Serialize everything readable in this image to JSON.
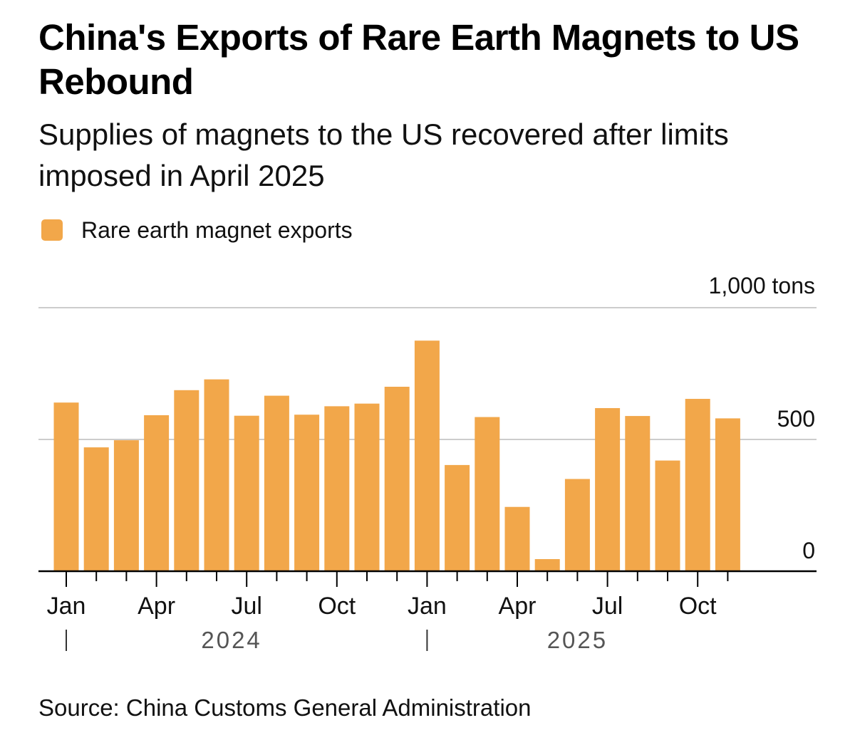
{
  "title": "China's Exports of Rare Earth Magnets to US Rebound",
  "subtitle": "Supplies of magnets to the US recovered after limits imposed in April 2025",
  "source": "Source: China Customs General Administration",
  "colors": {
    "bar": "#F2A74A",
    "grid": "#cccccc",
    "axis": "#000000",
    "year_text": "#555555"
  },
  "chart_data": {
    "type": "bar",
    "title": "China's Exports of Rare Earth Magnets to US Rebound",
    "series": [
      {
        "name": "Rare earth magnet exports",
        "values": [
          640,
          470,
          497,
          592,
          687,
          728,
          590,
          666,
          594,
          626,
          636,
          700,
          875,
          403,
          585,
          244,
          46,
          350,
          619,
          589,
          420,
          654,
          580
        ]
      }
    ],
    "categories": [
      "Jan 2024",
      "Feb 2024",
      "Mar 2024",
      "Apr 2024",
      "May 2024",
      "Jun 2024",
      "Jul 2024",
      "Aug 2024",
      "Sep 2024",
      "Oct 2024",
      "Nov 2024",
      "Dec 2024",
      "Jan 2025",
      "Feb 2025",
      "Mar 2025",
      "Apr 2025",
      "May 2025",
      "Jun 2025",
      "Jul 2025",
      "Aug 2025",
      "Sep 2025",
      "Oct 2025",
      "Nov 2025"
    ],
    "x_tick_labels": [
      "Jan",
      "Apr",
      "Jul",
      "Oct",
      "Jan",
      "Apr",
      "Jul",
      "Oct"
    ],
    "x_tick_indices": [
      0,
      3,
      6,
      9,
      12,
      15,
      18,
      21
    ],
    "year_labels": [
      "2024",
      "2025"
    ],
    "year_start_indices": [
      0,
      12
    ],
    "y_ticks": [
      0,
      500
    ],
    "y_tick_labels": [
      "0",
      "500"
    ],
    "y_top_label": "1,000 tons",
    "ylim": [
      0,
      1000
    ],
    "ylabel": "tons",
    "xlabel": "",
    "grid": true,
    "legend": "top-left"
  }
}
